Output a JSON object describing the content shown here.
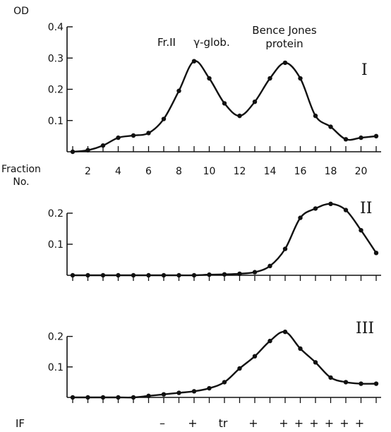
{
  "chart_data": [
    {
      "type": "line",
      "panel_label": "I",
      "ylabel": "OD",
      "xlabel": "Fraction No.",
      "xlabel_lines": [
        "Fraction",
        "No."
      ],
      "xlim": [
        1,
        22
      ],
      "ylim": [
        0,
        0.4
      ],
      "y_ticks": [
        0.1,
        0.2,
        0.3,
        0.4
      ],
      "y_tick_labels": [
        "0.1",
        "0.2",
        "0.3",
        "0.4"
      ],
      "x_ticks": [
        2,
        4,
        6,
        8,
        10,
        12,
        14,
        16,
        18,
        20
      ],
      "x_tick_labels": [
        "2",
        "4",
        "6",
        "8",
        "10",
        "12",
        "14",
        "16",
        "18",
        "20"
      ],
      "annotations": [
        "Fr.II",
        "γ-glob.",
        "Bence Jones",
        "protein"
      ],
      "grid": false,
      "series": [
        {
          "x": [
            1,
            2,
            3,
            4,
            5,
            6,
            7,
            8,
            9,
            10,
            11,
            12,
            13,
            14,
            15,
            16,
            17,
            18,
            19,
            20,
            21
          ],
          "values": [
            0.0,
            0.005,
            0.02,
            0.045,
            0.052,
            0.06,
            0.105,
            0.195,
            0.29,
            0.235,
            0.155,
            0.115,
            0.16,
            0.235,
            0.285,
            0.235,
            0.115,
            0.08,
            0.04,
            0.045,
            0.05
          ]
        }
      ]
    },
    {
      "type": "line",
      "panel_label": "II",
      "xlim": [
        1,
        22
      ],
      "ylim": [
        0,
        0.25
      ],
      "y_ticks": [
        0.1,
        0.2
      ],
      "y_tick_labels": [
        "0.1",
        "0.2"
      ],
      "grid": false,
      "series": [
        {
          "x": [
            1,
            2,
            3,
            4,
            5,
            6,
            7,
            8,
            9,
            10,
            11,
            12,
            13,
            14,
            15,
            16,
            17,
            18,
            19,
            20,
            21
          ],
          "values": [
            0,
            0,
            0,
            0,
            0,
            0,
            0,
            0,
            0,
            0.002,
            0.003,
            0.005,
            0.01,
            0.03,
            0.085,
            0.185,
            0.215,
            0.23,
            0.21,
            0.145,
            0.072
          ]
        }
      ]
    },
    {
      "type": "line",
      "panel_label": "III",
      "xlim": [
        1,
        22
      ],
      "ylim": [
        0,
        0.25
      ],
      "y_ticks": [
        0.1,
        0.2
      ],
      "y_tick_labels": [
        "0.1",
        "0.2"
      ],
      "grid": false,
      "series": [
        {
          "x": [
            1,
            2,
            3,
            4,
            5,
            6,
            7,
            8,
            9,
            10,
            11,
            12,
            13,
            14,
            15,
            16,
            17,
            18,
            19,
            20,
            21
          ],
          "values": [
            0,
            0,
            0,
            0,
            0,
            0.005,
            0.01,
            0.015,
            0.02,
            0.03,
            0.05,
            0.095,
            0.135,
            0.185,
            0.215,
            0.16,
            0.115,
            0.065,
            0.05,
            0.045,
            0.045
          ]
        }
      ]
    }
  ],
  "if_row": {
    "label": "IF",
    "marks": [
      {
        "x": 7,
        "text": "–"
      },
      {
        "x": 9,
        "text": "+"
      },
      {
        "x": 11,
        "text": "tr"
      },
      {
        "x": 13,
        "text": "+"
      },
      {
        "x": 15,
        "text": "+"
      },
      {
        "x": 16,
        "text": "+"
      },
      {
        "x": 17,
        "text": "+"
      },
      {
        "x": 18,
        "text": "+"
      },
      {
        "x": 19,
        "text": "+"
      },
      {
        "x": 20,
        "text": "+"
      }
    ]
  },
  "colors": {
    "ink": "#111111",
    "background": "#ffffff"
  }
}
